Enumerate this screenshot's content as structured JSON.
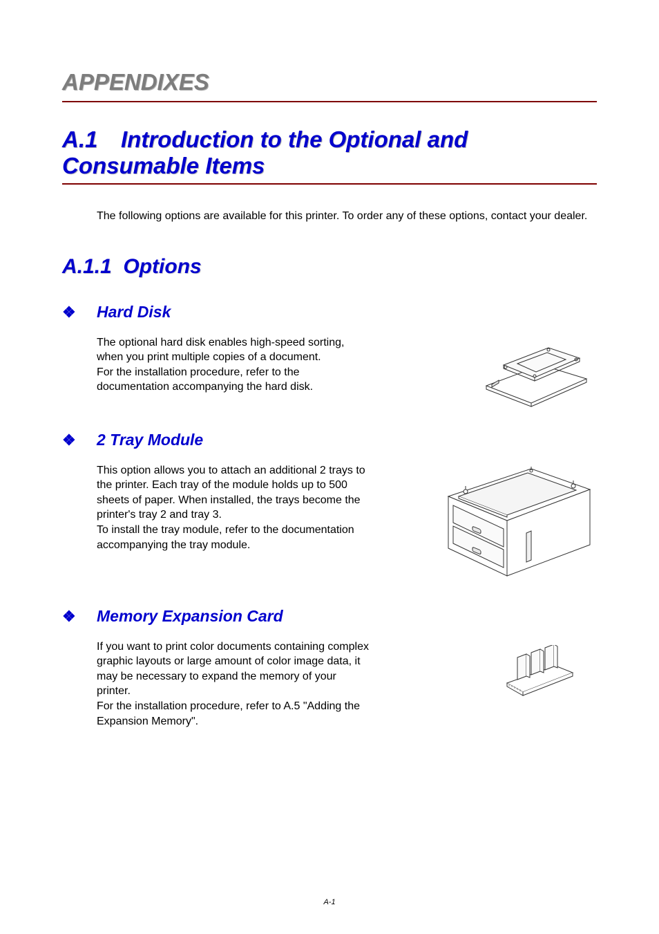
{
  "main_heading": "APPENDIXES",
  "section": {
    "number": "A.1",
    "title": "Introduction to the Optional and Consumable Items"
  },
  "intro": "The following options are available for this printer. To order any of these options, contact your dealer.",
  "subsection": {
    "number": "A.1.1",
    "title": "Options"
  },
  "options": {
    "hard_disk": {
      "title": "Hard Disk",
      "text": "The optional hard disk enables high-speed sorting, when you print multiple copies of a document.\nFor the installation procedure, refer to the documentation accompanying the hard disk."
    },
    "tray_module": {
      "title": "2 Tray Module",
      "text": "This option allows you to attach an additional 2 trays to the printer. Each tray of the module holds up to 500 sheets of paper. When installed, the trays become the printer's tray 2 and tray 3.\nTo install the tray module, refer to the documentation accompanying the tray module."
    },
    "memory_card": {
      "title": "Memory Expansion Card",
      "text": "If you want to print color documents containing complex graphic layouts or large amount of color image data, it may be necessary to expand the memory of your printer.\nFor the installation procedure, refer to A.5 \"Adding the Expansion Memory\"."
    }
  },
  "bullet_symbol": "❖",
  "page_number": "A-1",
  "colors": {
    "heading_gray": "#7d7d7d",
    "heading_blue": "#0000cd",
    "underline_red": "#7e0000",
    "body_text": "#000000",
    "illustration_stroke": "#333333"
  }
}
